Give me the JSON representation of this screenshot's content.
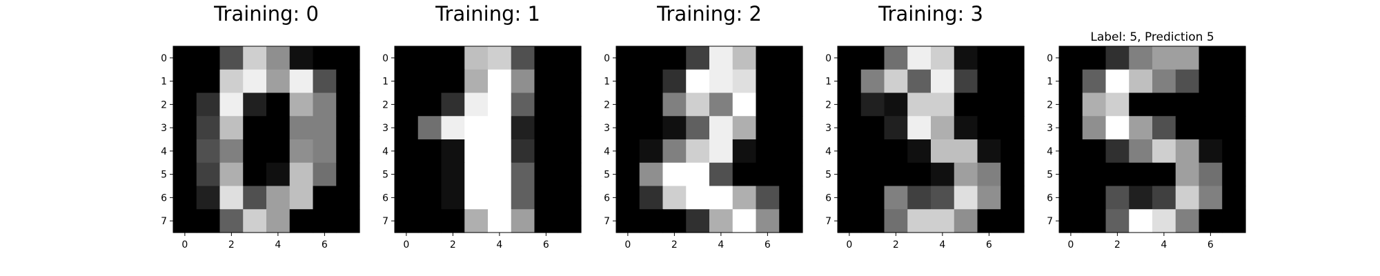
{
  "figure": {
    "background": "#ffffff",
    "colormap": "gray_r (0 = black, 16 = white)"
  },
  "chart_data": [
    {
      "type": "heatmap",
      "title": "Training: 0",
      "x_ticks": [
        0,
        2,
        4,
        6
      ],
      "y_ticks": [
        0,
        1,
        2,
        3,
        4,
        5,
        6,
        7
      ],
      "xlim": [
        -0.5,
        7.5
      ],
      "ylim": [
        7.5,
        -0.5
      ],
      "value_range": [
        0,
        16
      ],
      "values": [
        [
          0,
          0,
          5,
          13,
          9,
          1,
          0,
          0
        ],
        [
          0,
          0,
          13,
          15,
          10,
          15,
          5,
          0
        ],
        [
          0,
          3,
          15,
          2,
          0,
          11,
          8,
          0
        ],
        [
          0,
          4,
          12,
          0,
          0,
          8,
          8,
          0
        ],
        [
          0,
          5,
          8,
          0,
          0,
          9,
          8,
          0
        ],
        [
          0,
          4,
          11,
          0,
          1,
          12,
          7,
          0
        ],
        [
          0,
          2,
          14,
          5,
          10,
          12,
          0,
          0
        ],
        [
          0,
          0,
          6,
          13,
          10,
          0,
          0,
          0
        ]
      ]
    },
    {
      "type": "heatmap",
      "title": "Training: 1",
      "x_ticks": [
        0,
        2,
        4,
        6
      ],
      "y_ticks": [
        0,
        1,
        2,
        3,
        4,
        5,
        6,
        7
      ],
      "xlim": [
        -0.5,
        7.5
      ],
      "ylim": [
        7.5,
        -0.5
      ],
      "value_range": [
        0,
        16
      ],
      "values": [
        [
          0,
          0,
          0,
          12,
          13,
          5,
          0,
          0
        ],
        [
          0,
          0,
          0,
          11,
          16,
          9,
          0,
          0
        ],
        [
          0,
          0,
          3,
          15,
          16,
          6,
          0,
          0
        ],
        [
          0,
          7,
          15,
          16,
          16,
          2,
          0,
          0
        ],
        [
          0,
          0,
          1,
          16,
          16,
          3,
          0,
          0
        ],
        [
          0,
          0,
          1,
          16,
          16,
          6,
          0,
          0
        ],
        [
          0,
          0,
          1,
          16,
          16,
          6,
          0,
          0
        ],
        [
          0,
          0,
          0,
          11,
          16,
          10,
          0,
          0
        ]
      ]
    },
    {
      "type": "heatmap",
      "title": "Training: 2",
      "x_ticks": [
        0,
        2,
        4,
        6
      ],
      "y_ticks": [
        0,
        1,
        2,
        3,
        4,
        5,
        6,
        7
      ],
      "xlim": [
        -0.5,
        7.5
      ],
      "ylim": [
        7.5,
        -0.5
      ],
      "value_range": [
        0,
        16
      ],
      "values": [
        [
          0,
          0,
          0,
          4,
          15,
          12,
          0,
          0
        ],
        [
          0,
          0,
          3,
          16,
          15,
          14,
          0,
          0
        ],
        [
          0,
          0,
          8,
          13,
          8,
          16,
          0,
          0
        ],
        [
          0,
          0,
          1,
          6,
          15,
          11,
          0,
          0
        ],
        [
          0,
          1,
          8,
          13,
          15,
          1,
          0,
          0
        ],
        [
          0,
          9,
          16,
          16,
          5,
          0,
          0,
          0
        ],
        [
          0,
          3,
          13,
          16,
          16,
          11,
          5,
          0
        ],
        [
          0,
          0,
          0,
          3,
          11,
          16,
          9,
          0
        ]
      ]
    },
    {
      "type": "heatmap",
      "title": "Training: 3",
      "x_ticks": [
        0,
        2,
        4,
        6
      ],
      "y_ticks": [
        0,
        1,
        2,
        3,
        4,
        5,
        6,
        7
      ],
      "xlim": [
        -0.5,
        7.5
      ],
      "ylim": [
        7.5,
        -0.5
      ],
      "value_range": [
        0,
        16
      ],
      "values": [
        [
          0,
          0,
          7,
          15,
          13,
          1,
          0,
          0
        ],
        [
          0,
          8,
          13,
          6,
          15,
          4,
          0,
          0
        ],
        [
          0,
          2,
          1,
          13,
          13,
          0,
          0,
          0
        ],
        [
          0,
          0,
          2,
          15,
          11,
          1,
          0,
          0
        ],
        [
          0,
          0,
          0,
          1,
          12,
          12,
          1,
          0
        ],
        [
          0,
          0,
          0,
          0,
          1,
          10,
          8,
          0
        ],
        [
          0,
          0,
          8,
          4,
          5,
          14,
          9,
          0
        ],
        [
          0,
          0,
          7,
          13,
          13,
          9,
          0,
          0
        ]
      ]
    },
    {
      "type": "heatmap",
      "title": "Label: 5, Prediction 5",
      "x_ticks": [
        0,
        2,
        4,
        6
      ],
      "y_ticks": [
        0,
        1,
        2,
        3,
        4,
        5,
        6,
        7
      ],
      "xlim": [
        -0.5,
        7.5
      ],
      "ylim": [
        7.5,
        -0.5
      ],
      "value_range": [
        0,
        16
      ],
      "values": [
        [
          0,
          0,
          3,
          8,
          10,
          10,
          0,
          0
        ],
        [
          0,
          6,
          16,
          12,
          8,
          5,
          0,
          0
        ],
        [
          0,
          11,
          13,
          0,
          0,
          0,
          0,
          0
        ],
        [
          0,
          9,
          16,
          10,
          5,
          0,
          0,
          0
        ],
        [
          0,
          0,
          3,
          8,
          13,
          10,
          1,
          0
        ],
        [
          0,
          0,
          0,
          0,
          0,
          10,
          7,
          0
        ],
        [
          0,
          0,
          5,
          2,
          4,
          13,
          8,
          0
        ],
        [
          0,
          0,
          6,
          16,
          14,
          8,
          0,
          0
        ]
      ]
    }
  ]
}
